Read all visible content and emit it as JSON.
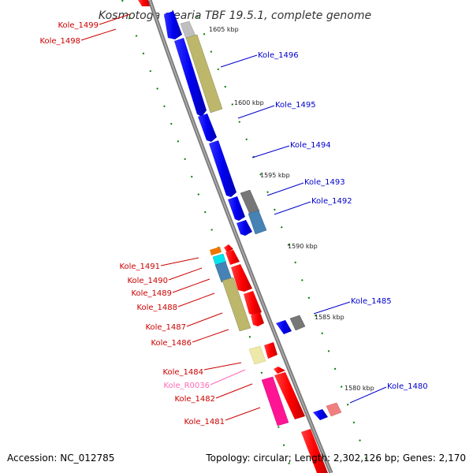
{
  "title": "Kosmotoga olearia TBF 19.5.1, complete genome",
  "footer": {
    "accession": "Accession: NC_012785",
    "topology": "Topology: circular; Length: 2,302,126 bp; Genes: 2,170"
  },
  "colors": {
    "blue": "#0000ff",
    "red": "#ff0000",
    "khaki": "#bdb76b",
    "gray": "#777777",
    "steel": "#4682b4",
    "cyan": "#00e5ee",
    "orange": "#ee7600",
    "pink": "#ff1493",
    "lightpink": "#f08080",
    "palegold": "#eee8aa",
    "tick": "#008000"
  },
  "kbp_labels": [
    "1605 kbp",
    "1600 kbp",
    "1595 kbp",
    "1590 kbp",
    "1585 kbp",
    "1580 kbp"
  ],
  "genes_right": [
    "Kole_1496",
    "Kole_1495",
    "Kole_1494",
    "Kole_1493",
    "Kole_1492",
    "Kole_1485",
    "Kole_1480"
  ],
  "genes_left": [
    "Kole_1499",
    "Kole_1498",
    "Kole_1491",
    "Kole_1490",
    "Kole_1489",
    "Kole_1488",
    "Kole_1487",
    "Kole_1486",
    "Kole_1484",
    "Kole_R0036",
    "Kole_1482",
    "Kole_1481"
  ]
}
